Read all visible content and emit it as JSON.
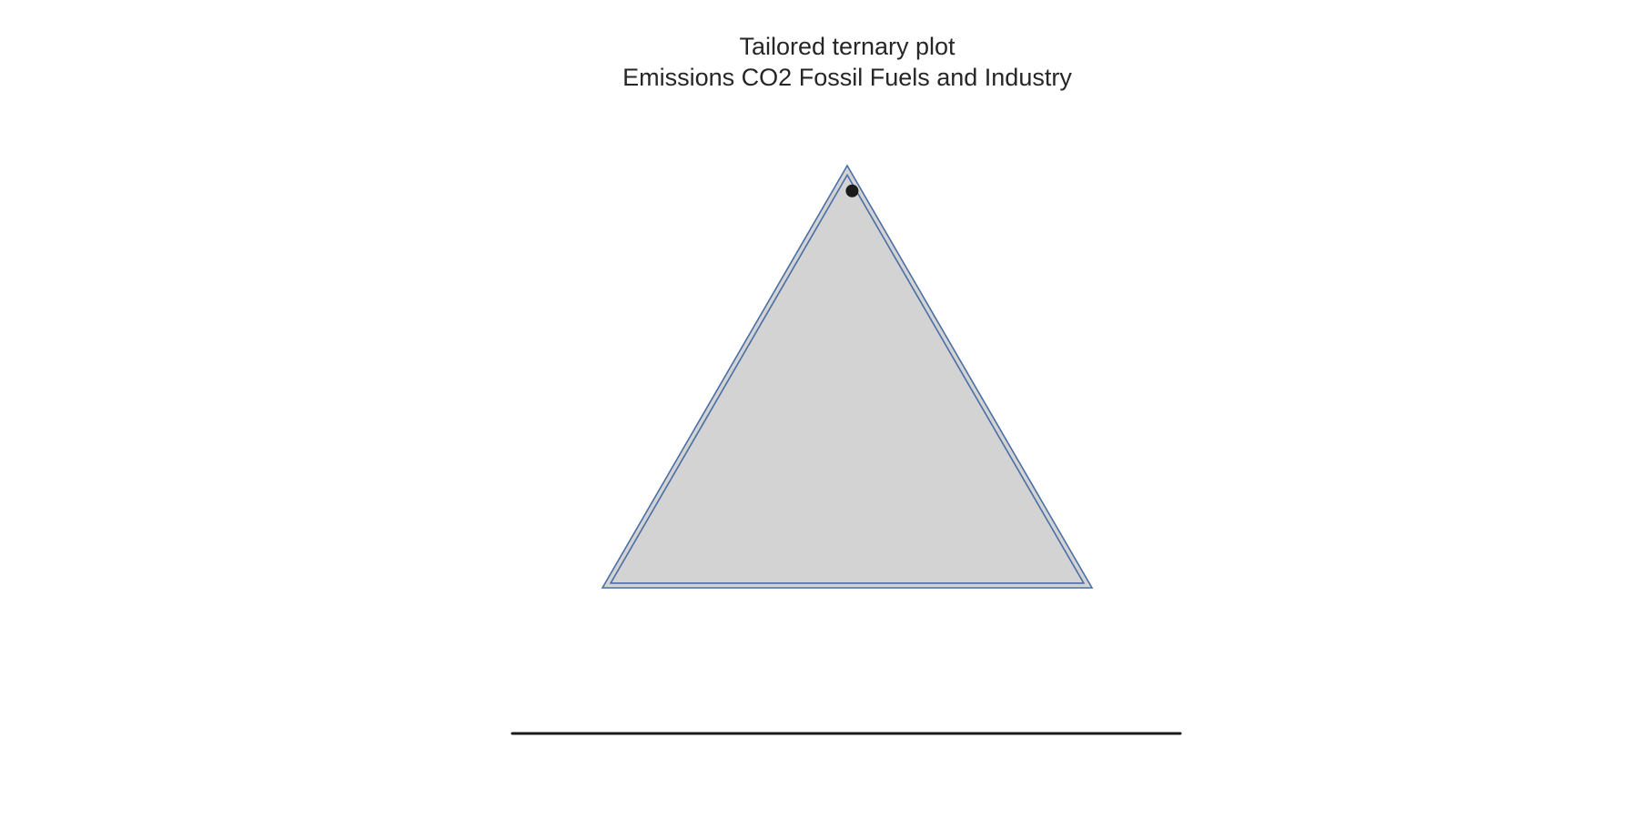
{
  "chart_data": {
    "type": "scatter",
    "subtype": "ternary",
    "title": "Tailored ternary plot",
    "subtitle": "Emissions CO2 Fossil Fuels and Industry",
    "axes": {
      "a": "",
      "b": "",
      "c": ""
    },
    "scale": 1.0,
    "grid": false,
    "legend": "none",
    "points": [
      {
        "a": 0.94,
        "b": 0.02,
        "c": 0.04
      }
    ],
    "colors": {
      "plot_fill": "#d3d3d3",
      "border": "#4a6fa5",
      "marker": "#1a1a1a",
      "baseline": "#1a1a1a"
    }
  }
}
